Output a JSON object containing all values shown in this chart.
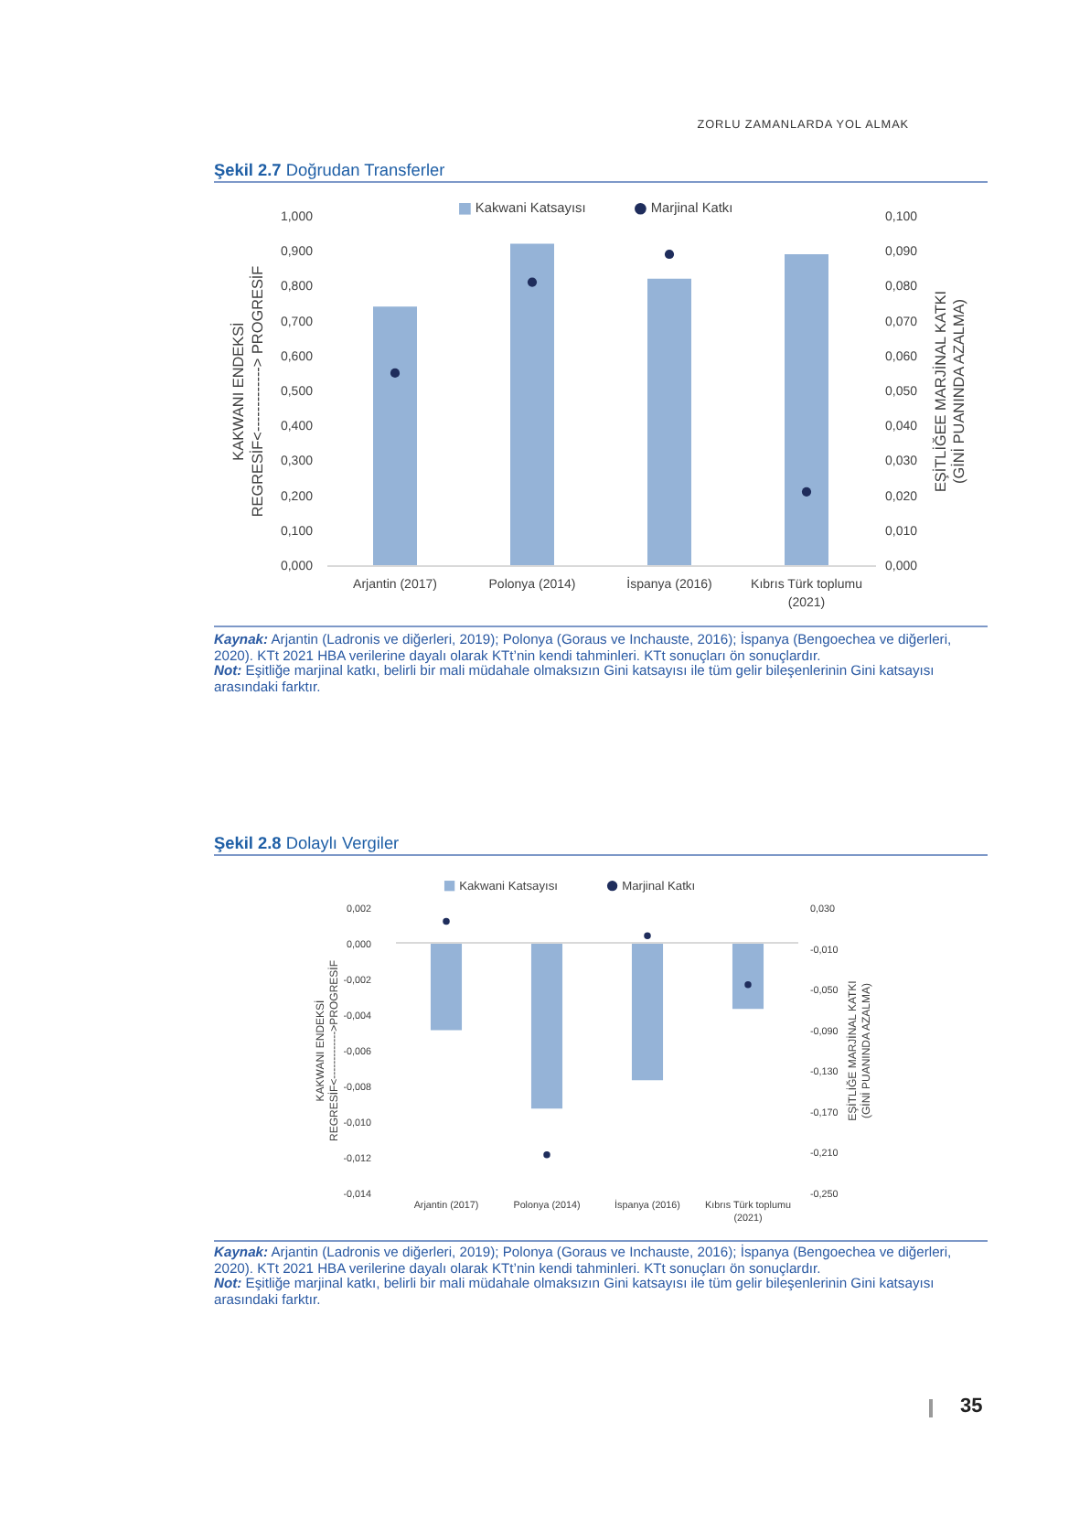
{
  "chart_data": [
    {
      "type": "bar",
      "title": "Şekil 2.7 Doğrudan Transferler",
      "ylabel": "KAKWANI ENDEKSİ\nREGRESİF<-------------> PROGRESİF",
      "y2label": "EŞİTLİĞEE MARJİNAL KATKI\n(GİNİ PUANINDA AZALMA)",
      "categories": [
        "Arjantin (2017)",
        "Polonya (2014)",
        "İspanya (2016)",
        "Kıbrıs Türk toplumu (2021)"
      ],
      "series": [
        {
          "name": "Kakwani Katsayısı",
          "type": "bar",
          "color": "#95b3d7",
          "values": [
            0.74,
            0.92,
            0.82,
            0.89
          ]
        },
        {
          "name": "Marjinal Katkı",
          "type": "scatter",
          "axis": "y2",
          "color": "#1f2d5c",
          "values": [
            0.055,
            0.081,
            0.089,
            0.021
          ]
        }
      ],
      "ylim": [
        0,
        1
      ],
      "yticks": [
        {
          "value": 0,
          "label": "0,000"
        },
        {
          "value": 0.1,
          "label": "0,100"
        },
        {
          "value": 0.2,
          "label": "0,200"
        },
        {
          "value": 0.3,
          "label": "0,300"
        },
        {
          "value": 0.4,
          "label": "0,400"
        },
        {
          "value": 0.5,
          "label": "0,500"
        },
        {
          "value": 0.6,
          "label": "0,600"
        },
        {
          "value": 0.7,
          "label": "0,700"
        },
        {
          "value": 0.8,
          "label": "0,800"
        },
        {
          "value": 0.9,
          "label": "0,900"
        },
        {
          "value": 1,
          "label": "1,000"
        }
      ],
      "y2lim": [
        0,
        0.1
      ],
      "y2ticks": [
        {
          "value": 0,
          "label": "0,000"
        },
        {
          "value": 0.01,
          "label": "0,010"
        },
        {
          "value": 0.02,
          "label": "0,020"
        },
        {
          "value": 0.03,
          "label": "0,030"
        },
        {
          "value": 0.04,
          "label": "0,040"
        },
        {
          "value": 0.05,
          "label": "0,050"
        },
        {
          "value": 0.06,
          "label": "0,060"
        },
        {
          "value": 0.07,
          "label": "0,070"
        },
        {
          "value": 0.08,
          "label": "0,080"
        },
        {
          "value": 0.09,
          "label": "0,090"
        },
        {
          "value": 0.1,
          "label": "0,100"
        }
      ],
      "legend": "top",
      "marker": "circle",
      "annotations": [
        "ZORLU ZAMANLARDA YOL ALMAK",
        "Kaynak: Arjantin (Ladronis ve diğerleri, 2019); Polonya (Goraus ve Inchauste, 2016); İspanya (Bengoechea ve diğerleri, 2020). KTt 2021 HBA verilerine dayalı olarak KTt’nin kendi tahminleri. KTt sonuçları ön sonuçlardır.",
        "Not: Eşitliğe marjinal katkı, belirli bir mali müdahale olmaksızın Gini katsayısı ile tüm gelir bileşenlerinin Gini katsayısı arasındaki farktır."
      ]
    },
    {
      "type": "bar",
      "title": "Şekil 2.8 Dolaylı Vergiler",
      "ylabel": "KAKWANI ENDEKSİ\nREGRESİF<------------->PROGRESİF",
      "y2label": "EŞİTLİĞE MARJİNAL KATKI\n(GİNİ PUANINDA AZALMA)",
      "categories": [
        "Arjantin (2017)",
        "Polonya (2014)",
        "İspanya (2016)",
        "Kıbrıs Türk toplumu (2021)"
      ],
      "series": [
        {
          "name": "Kakwani Katsayısı",
          "type": "bar",
          "color": "#95b3d7",
          "values": [
            -0.0049,
            -0.0093,
            -0.0077,
            -0.0037
          ]
        },
        {
          "name": "Marjinal Katkı",
          "type": "scatter",
          "axis": "y2",
          "color": "#1f2d5c",
          "values": [
            0.016,
            -0.213,
            0.002,
            -0.046
          ]
        }
      ],
      "ylim": [
        -0.014,
        0.002
      ],
      "yticks": [
        {
          "value": -0.014,
          "label": "-0,014"
        },
        {
          "value": -0.012,
          "label": "-0,012"
        },
        {
          "value": -0.01,
          "label": "-0,010"
        },
        {
          "value": -0.008,
          "label": "-0,008"
        },
        {
          "value": -0.006,
          "label": "-0,006"
        },
        {
          "value": -0.004,
          "label": "-0,004"
        },
        {
          "value": -0.002,
          "label": "-0,002"
        },
        {
          "value": 0,
          "label": "0,000"
        },
        {
          "value": 0.002,
          "label": "0,002"
        }
      ],
      "y2lim": [
        -0.25,
        0.03
      ],
      "y2ticks": [
        {
          "value": -0.25,
          "label": "-0,250"
        },
        {
          "value": -0.21,
          "label": "-0,210"
        },
        {
          "value": -0.17,
          "label": "-0,170"
        },
        {
          "value": -0.13,
          "label": "-0,130"
        },
        {
          "value": -0.09,
          "label": "-0,090"
        },
        {
          "value": -0.05,
          "label": "-0,050"
        },
        {
          "value": -0.01,
          "label": "-0,010"
        },
        {
          "value": 0.03,
          "label": "0,030"
        }
      ],
      "legend": "top",
      "marker": "circle",
      "ref_lines": [
        {
          "axis": "y",
          "value": 0,
          "color": "#d9d9d9"
        }
      ],
      "annotations": [
        "Kaynak: Arjantin (Ladronis ve diğerleri, 2019); Polonya (Goraus ve Inchauste, 2016); İspanya (Bengoechea ve diğerleri, 2020). KTt 2021 HBA verilerine dayalı olarak KTt’nin kendi tahminleri. KTt sonuçları ön sonuçlardır.",
        "Not: Eşitliğe marjinal katkı, belirli bir mali müdahale olmaksızın Gini katsayısı ile tüm gelir bileşenlerinin Gini katsayısı arasındaki farktır.",
        "35"
      ]
    }
  ]
}
